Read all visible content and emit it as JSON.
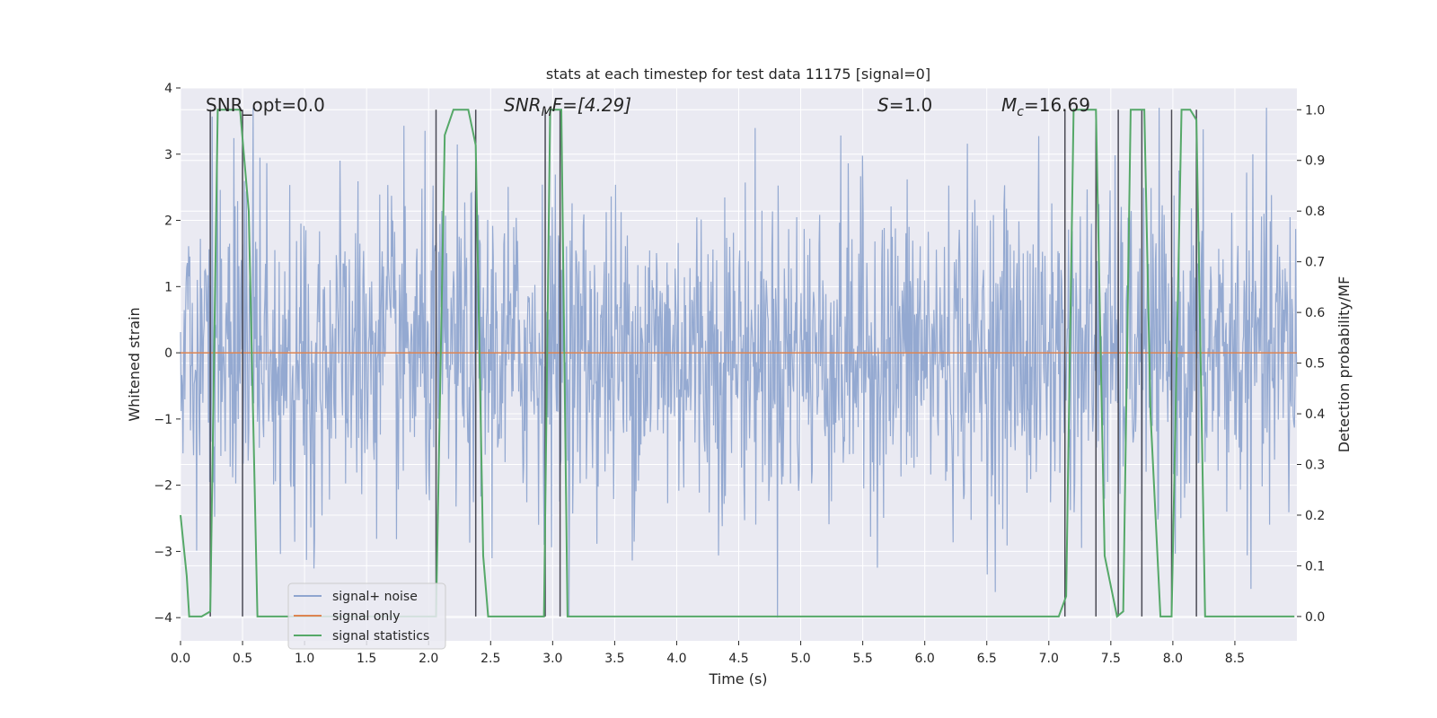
{
  "chart_data": {
    "type": "line",
    "title": "stats at each timestep for test data 11175 [signal=0]",
    "xlabel": "Time (s)",
    "ylabel": "Whitened strain",
    "y2label": "Detection probability/MF",
    "xlim": [
      0.0,
      9.0
    ],
    "ylim": [
      -4.35,
      4.0
    ],
    "y2lim": [
      -0.048,
      1.043
    ],
    "x_ticks": [
      "0.0",
      "0.5",
      "1.0",
      "1.5",
      "2.0",
      "2.5",
      "3.0",
      "3.5",
      "4.0",
      "4.5",
      "5.0",
      "5.5",
      "6.0",
      "6.5",
      "7.0",
      "7.5",
      "8.0",
      "8.5"
    ],
    "y_ticks": [
      "4",
      "3",
      "2",
      "1",
      "0",
      "−1",
      "−2",
      "−3",
      "−4"
    ],
    "y2_ticks": [
      "1.0",
      "0.9",
      "0.8",
      "0.7",
      "0.6",
      "0.5",
      "0.4",
      "0.3",
      "0.2",
      "0.1",
      "0.0"
    ],
    "grid": true,
    "legend_position": "lower-left",
    "annotations": {
      "snr_opt": "SNR_opt=0.0",
      "snr_mf_sym": "SNR",
      "snr_mf_sub": "M",
      "snr_mf_rest": "F=[4.29]",
      "s_sym": "S",
      "s_rest": "=1.0",
      "mc_sym": "M",
      "mc_sub": "c",
      "mc_rest": "=16.69"
    },
    "series": [
      {
        "name": "signal+ noise",
        "color": "#8fa5cf",
        "noise_params": {
          "samples": 1800,
          "std": 1.2,
          "min": -4.0,
          "max": 3.7
        }
      },
      {
        "name": "signal only",
        "color": "#dd8452",
        "values": [
          [
            0.0,
            0.0
          ],
          [
            9.0,
            0.0
          ]
        ]
      },
      {
        "name": "signal statistics",
        "color": "#55a868",
        "axis": "right",
        "points": [
          [
            0.0,
            0.2
          ],
          [
            0.05,
            0.08
          ],
          [
            0.07,
            0.0
          ],
          [
            0.17,
            0.0
          ],
          [
            0.24,
            0.01
          ],
          [
            0.3,
            1.0
          ],
          [
            0.48,
            1.0
          ],
          [
            0.55,
            0.8
          ],
          [
            0.62,
            0.0
          ],
          [
            2.06,
            0.0
          ],
          [
            2.13,
            0.95
          ],
          [
            2.2,
            1.0
          ],
          [
            2.32,
            1.0
          ],
          [
            2.38,
            0.93
          ],
          [
            2.44,
            0.12
          ],
          [
            2.48,
            0.0
          ],
          [
            2.93,
            0.0
          ],
          [
            2.98,
            1.0
          ],
          [
            3.07,
            1.0
          ],
          [
            3.12,
            0.0
          ],
          [
            3.2,
            0.0
          ],
          [
            7.08,
            0.0
          ],
          [
            7.14,
            0.04
          ],
          [
            7.2,
            1.0
          ],
          [
            7.38,
            1.0
          ],
          [
            7.45,
            0.12
          ],
          [
            7.55,
            0.0
          ],
          [
            7.6,
            0.01
          ],
          [
            7.66,
            1.0
          ],
          [
            7.77,
            1.0
          ],
          [
            7.82,
            0.4
          ],
          [
            7.9,
            0.0
          ],
          [
            7.99,
            0.0
          ],
          [
            8.07,
            1.0
          ],
          [
            8.14,
            1.0
          ],
          [
            8.19,
            0.98
          ],
          [
            8.26,
            0.0
          ],
          [
            8.98,
            0.0
          ]
        ]
      }
    ],
    "vlines": {
      "color": "#4a4a55",
      "x": [
        0.24,
        0.5,
        2.06,
        2.38,
        2.94,
        3.06,
        7.13,
        7.38,
        7.56,
        7.75,
        7.99,
        8.19
      ]
    }
  }
}
